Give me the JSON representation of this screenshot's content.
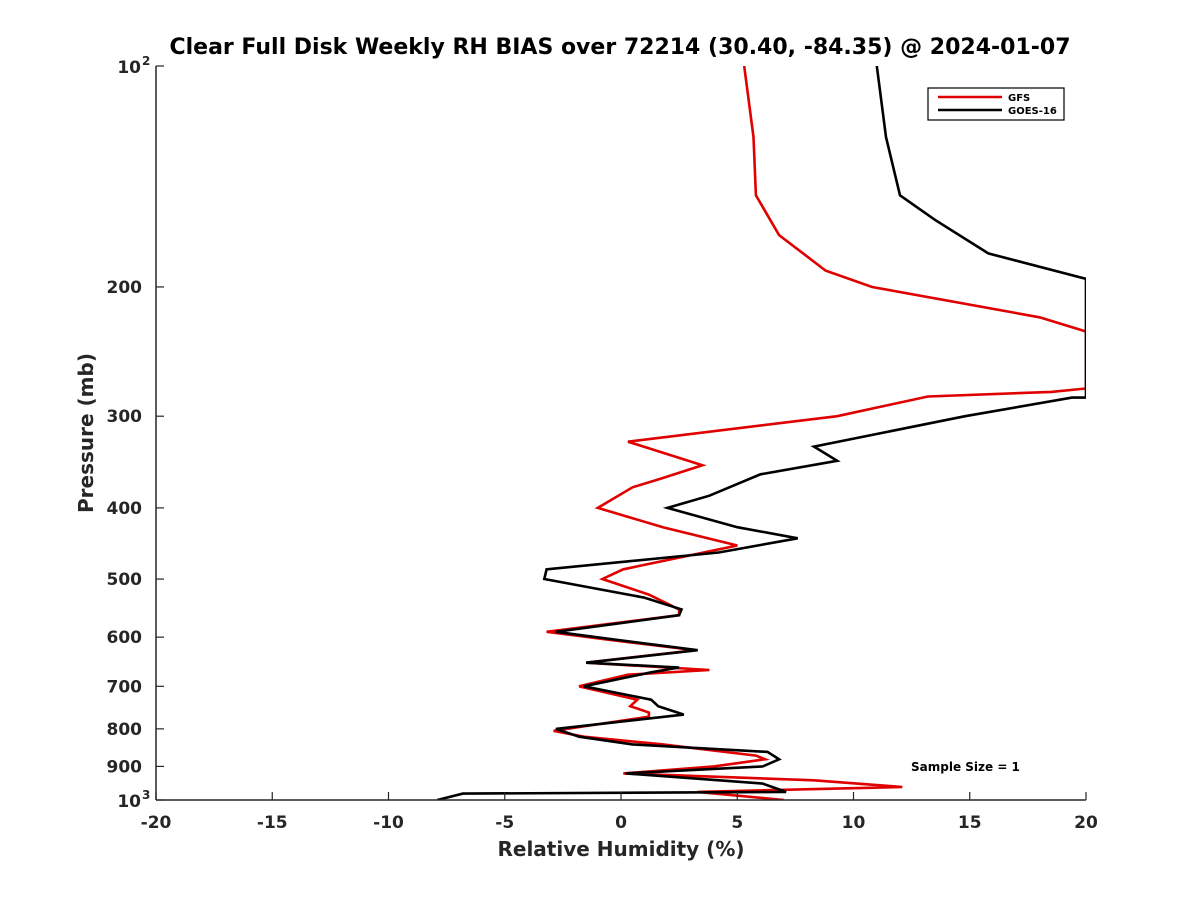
{
  "chart_data": {
    "type": "line",
    "title": "Clear Full Disk Weekly RH BIAS over 72214 (30.40, -84.35) @ 2024-01-07",
    "xlabel": "Relative Humidity (%)",
    "ylabel": "Pressure (mb)",
    "xlim": [
      -20,
      20
    ],
    "ylim": [
      100,
      1000
    ],
    "yscale": "log",
    "y_reversed": true,
    "x_ticks": [
      "-20",
      "-15",
      "-10",
      "-5",
      "0",
      "5",
      "10",
      "15",
      "20"
    ],
    "y_ticks": [
      {
        "value": 100,
        "label": "10",
        "sup": "2"
      },
      {
        "value": 200,
        "label": "200",
        "sup": ""
      },
      {
        "value": 300,
        "label": "300",
        "sup": ""
      },
      {
        "value": 400,
        "label": "400",
        "sup": ""
      },
      {
        "value": 500,
        "label": "500",
        "sup": ""
      },
      {
        "value": 600,
        "label": "600",
        "sup": ""
      },
      {
        "value": 700,
        "label": "700",
        "sup": ""
      },
      {
        "value": 800,
        "label": "800",
        "sup": ""
      },
      {
        "value": 900,
        "label": "900",
        "sup": ""
      },
      {
        "value": 1000,
        "label": "10",
        "sup": "3"
      }
    ],
    "legend_position": "top-right",
    "series": [
      {
        "name": "GFS",
        "color": "#e00000",
        "points": [
          [
            5.3,
            100
          ],
          [
            5.7,
            125
          ],
          [
            5.8,
            150
          ],
          [
            6.8,
            170
          ],
          [
            8.8,
            190
          ],
          [
            10.8,
            200
          ],
          [
            18.0,
            220
          ],
          [
            20.0,
            230
          ],
          [
            20.0,
            275
          ],
          [
            18.5,
            278
          ],
          [
            13.2,
            282
          ],
          [
            9.3,
            300
          ],
          [
            0.3,
            325
          ],
          [
            3.5,
            350
          ],
          [
            1.7,
            365
          ],
          [
            0.5,
            375
          ],
          [
            -1.0,
            400
          ],
          [
            1.8,
            425
          ],
          [
            5.0,
            450
          ],
          [
            0.1,
            485
          ],
          [
            -0.8,
            500
          ],
          [
            1.2,
            525
          ],
          [
            2.5,
            550
          ],
          [
            2.5,
            560
          ],
          [
            -3.2,
            590
          ],
          [
            -0.5,
            605
          ],
          [
            3.2,
            625
          ],
          [
            -1.5,
            650
          ],
          [
            3.8,
            665
          ],
          [
            0.3,
            675
          ],
          [
            -1.8,
            700
          ],
          [
            0.7,
            730
          ],
          [
            0.4,
            745
          ],
          [
            1.2,
            760
          ],
          [
            1.2,
            770
          ],
          [
            -2.9,
            805
          ],
          [
            -1.6,
            820
          ],
          [
            1.8,
            840
          ],
          [
            5.8,
            870
          ],
          [
            6.2,
            880
          ],
          [
            4.0,
            900
          ],
          [
            0.1,
            920
          ],
          [
            8.3,
            940
          ],
          [
            12.1,
            960
          ],
          [
            3.3,
            975
          ],
          [
            7.0,
            1000
          ]
        ]
      },
      {
        "name": "GOES-16",
        "color": "#000000",
        "points": [
          [
            11.0,
            100
          ],
          [
            11.4,
            125
          ],
          [
            12.0,
            150
          ],
          [
            13.5,
            162
          ],
          [
            15.8,
            180
          ],
          [
            20.0,
            195
          ],
          [
            20.0,
            283
          ],
          [
            19.4,
            283
          ],
          [
            14.8,
            300
          ],
          [
            8.3,
            330
          ],
          [
            9.3,
            345
          ],
          [
            6.0,
            360
          ],
          [
            3.8,
            385
          ],
          [
            2.0,
            400
          ],
          [
            5.0,
            425
          ],
          [
            7.6,
            440
          ],
          [
            4.2,
            460
          ],
          [
            -3.2,
            485
          ],
          [
            -3.3,
            500
          ],
          [
            1.0,
            530
          ],
          [
            2.6,
            550
          ],
          [
            2.5,
            560
          ],
          [
            -2.8,
            590
          ],
          [
            -0.2,
            605
          ],
          [
            3.3,
            625
          ],
          [
            -1.5,
            650
          ],
          [
            2.5,
            660
          ],
          [
            1.3,
            670
          ],
          [
            -1.6,
            700
          ],
          [
            1.3,
            730
          ],
          [
            1.6,
            745
          ],
          [
            2.7,
            765
          ],
          [
            -2.8,
            800
          ],
          [
            -1.8,
            820
          ],
          [
            0.5,
            840
          ],
          [
            6.3,
            860
          ],
          [
            6.8,
            880
          ],
          [
            6.1,
            900
          ],
          [
            0.2,
            920
          ],
          [
            6.1,
            950
          ],
          [
            7.1,
            975
          ],
          [
            -6.8,
            980
          ],
          [
            -7.9,
            1000
          ]
        ]
      }
    ],
    "annotation": "Sample Size = 1"
  }
}
